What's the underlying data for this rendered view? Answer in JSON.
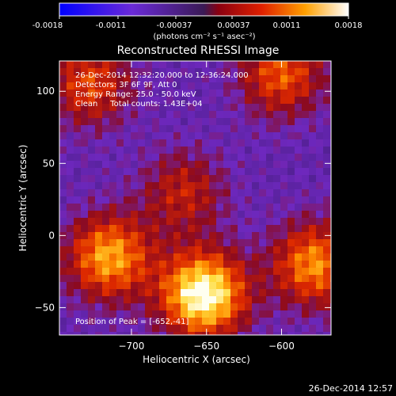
{
  "colorbar": {
    "tick_labels": [
      "-0.0018",
      "-0.0011",
      "-0.00037",
      "0.00037",
      "0.0011",
      "0.0018"
    ],
    "unit_label": "(photons cm⁻² s⁻¹ asec⁻²)",
    "range": [
      -0.0018,
      0.0018
    ]
  },
  "footer_timestamp": "26-Dec-2014 12:57",
  "chart_data": {
    "type": "heatmap",
    "title": "Reconstructed RHESSI Image",
    "xlabel": "Heliocentric X (arcsec)",
    "ylabel": "Heliocentric Y (arcsec)",
    "xlim": [
      -748,
      -567
    ],
    "ylim": [
      -69,
      121
    ],
    "x_ticks": [
      -700,
      -650,
      -600
    ],
    "y_ticks": [
      -50,
      0,
      50,
      100
    ],
    "annotations": [
      "26-Dec-2014 12:32:20.000 to 12:36:24.000",
      "Detectors: 3F 6F 9F, Att 0",
      "Energy Range: 25.0 - 50.0 keV",
      "Clean     Total counts: 1.43E+04"
    ],
    "peak_label": "Position of Peak = [-652,-41]",
    "sources": [
      {
        "x": -652,
        "y": -41,
        "value": 0.0018
      },
      {
        "x": -715,
        "y": -15,
        "value": 0.0013
      },
      {
        "x": -578,
        "y": -20,
        "value": 0.0012
      },
      {
        "x": -600,
        "y": 112,
        "value": 0.001
      },
      {
        "x": -728,
        "y": 105,
        "value": 0.0009
      },
      {
        "x": -665,
        "y": 30,
        "value": 0.0007
      }
    ]
  }
}
